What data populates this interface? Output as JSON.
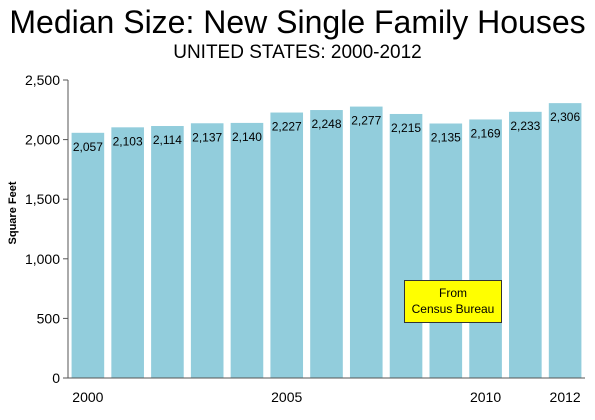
{
  "chart_data": {
    "type": "bar",
    "title": "Median Size: New Single Family Houses",
    "subtitle": "UNITED STATES: 2000-2012",
    "ylabel": "Square Feet",
    "xlabel": "",
    "categories": [
      "2000",
      "2001",
      "2002",
      "2003",
      "2004",
      "2005",
      "2006",
      "2007",
      "2008",
      "2009",
      "2010",
      "2011",
      "2012"
    ],
    "x_tick_labels": [
      "2000",
      "",
      "",
      "",
      "",
      "2005",
      "",
      "",
      "",
      "",
      "2010",
      "",
      "2012"
    ],
    "values": [
      2057,
      2103,
      2114,
      2137,
      2140,
      2227,
      2248,
      2277,
      2215,
      2135,
      2169,
      2233,
      2306
    ],
    "data_labels": [
      "2,057",
      "2,103",
      "2,114",
      "2,137",
      "2,140",
      "2,227",
      "2,248",
      "2,277",
      "2,215",
      "2,135",
      "2,169",
      "2,233",
      "2,306"
    ],
    "ylim": [
      0,
      2500
    ],
    "y_ticks": [
      0,
      500,
      1000,
      1500,
      2000,
      2500
    ],
    "y_tick_labels": [
      "0",
      "500",
      "1,000",
      "1,500",
      "2,000",
      "2,500"
    ],
    "grid": false,
    "legend": "none",
    "bar_color": "#92CDDC",
    "annotation": {
      "lines": [
        "From",
        "Census Bureau"
      ],
      "background": "#FFFF00"
    }
  }
}
